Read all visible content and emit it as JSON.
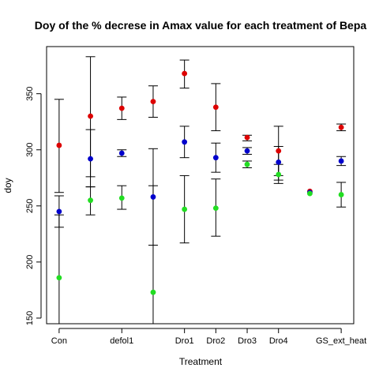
{
  "chart_data": {
    "type": "scatter",
    "title": "Doy of the % decrese in Amax value for each treatment of Bepa",
    "xlabel": "Treatment",
    "ylabel": "doy",
    "ylim": [
      145,
      392
    ],
    "y_ticks": [
      150,
      200,
      250,
      300,
      350
    ],
    "x_tick_labels": [
      "Con",
      "defol1",
      "Dro1",
      "Dro2",
      "Dro3",
      "Dro4",
      "GS_ext_heat"
    ],
    "x_tick_positions": [
      1,
      3,
      5,
      6,
      7,
      8,
      10
    ],
    "x_range": [
      0.6,
      10.4
    ],
    "grid": false,
    "legend": "none",
    "series": [
      {
        "color": "#dd0000",
        "points": [
          {
            "x": 1,
            "y": 304,
            "lo": 262,
            "hi": 345
          },
          {
            "x": 2,
            "y": 330,
            "lo": 276,
            "hi": 383
          },
          {
            "x": 3,
            "y": 337,
            "lo": 327,
            "hi": 347
          },
          {
            "x": 4,
            "y": 343,
            "lo": 329,
            "hi": 357
          },
          {
            "x": 5,
            "y": 368,
            "lo": 355,
            "hi": 380
          },
          {
            "x": 6,
            "y": 338,
            "lo": 317,
            "hi": 359
          },
          {
            "x": 7,
            "y": 311,
            "lo": 308,
            "hi": 313
          },
          {
            "x": 8,
            "y": 299,
            "lo": 277,
            "hi": 321
          },
          {
            "x": 9,
            "y": 263,
            "lo": 263,
            "hi": 263
          },
          {
            "x": 10,
            "y": 320,
            "lo": 317,
            "hi": 323
          }
        ]
      },
      {
        "color": "#0000cc",
        "points": [
          {
            "x": 1,
            "y": 245,
            "lo": 231,
            "hi": 259
          },
          {
            "x": 2,
            "y": 292,
            "lo": 267,
            "hi": 318
          },
          {
            "x": 3,
            "y": 297,
            "lo": 294,
            "hi": 300
          },
          {
            "x": 4,
            "y": 258,
            "lo": 215,
            "hi": 301
          },
          {
            "x": 5,
            "y": 307,
            "lo": 293,
            "hi": 321
          },
          {
            "x": 6,
            "y": 293,
            "lo": 280,
            "hi": 306
          },
          {
            "x": 7,
            "y": 299,
            "lo": 296,
            "hi": 302
          },
          {
            "x": 8,
            "y": 289,
            "lo": 273,
            "hi": 303
          },
          {
            "x": 9,
            "y": 262,
            "lo": 262,
            "hi": 262
          },
          {
            "x": 10,
            "y": 290,
            "lo": 286,
            "hi": 294
          }
        ]
      },
      {
        "color": "#22dd22",
        "points": [
          {
            "x": 1,
            "y": 186,
            "lo": 145,
            "hi": 242
          },
          {
            "x": 2,
            "y": 255,
            "lo": 242,
            "hi": 267
          },
          {
            "x": 3,
            "y": 257,
            "lo": 247,
            "hi": 268
          },
          {
            "x": 4,
            "y": 173,
            "lo": 145,
            "hi": 268
          },
          {
            "x": 5,
            "y": 247,
            "lo": 217,
            "hi": 277
          },
          {
            "x": 6,
            "y": 248,
            "lo": 223,
            "hi": 274
          },
          {
            "x": 7,
            "y": 287,
            "lo": 284,
            "hi": 290
          },
          {
            "x": 8,
            "y": 278,
            "lo": 270,
            "hi": 287
          },
          {
            "x": 9,
            "y": 261,
            "lo": 261,
            "hi": 261
          },
          {
            "x": 10,
            "y": 260,
            "lo": 249,
            "hi": 271
          }
        ]
      }
    ]
  }
}
